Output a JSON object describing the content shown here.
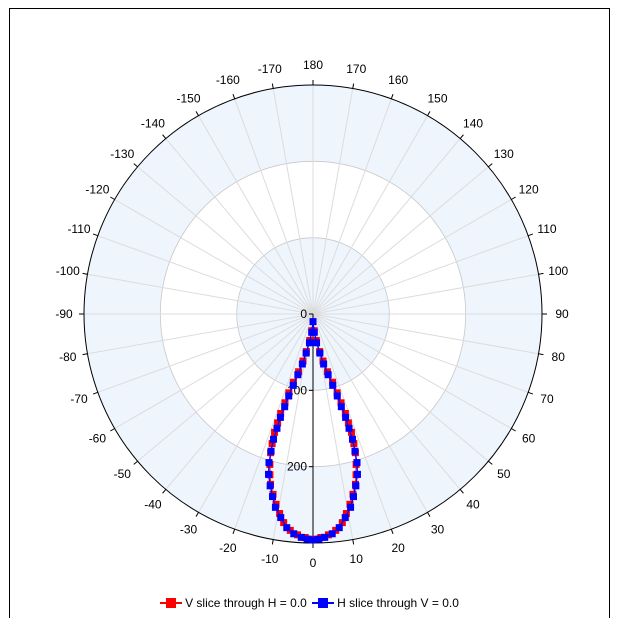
{
  "chart_data": {
    "type": "scatter",
    "subtype": "polar",
    "title": "",
    "angle_labels": [
      "180",
      "170",
      "160",
      "150",
      "140",
      "130",
      "120",
      "110",
      "100",
      "90",
      "80",
      "70",
      "60",
      "50",
      "40",
      "30",
      "20",
      "10",
      "0",
      "-10",
      "-20",
      "-30",
      "-40",
      "-50",
      "-60",
      "-70",
      "-80",
      "-90",
      "-100",
      "-110",
      "-120",
      "-130",
      "-140",
      "-150",
      "-160",
      "-170"
    ],
    "angle_label_values": [
      180,
      170,
      160,
      150,
      140,
      130,
      120,
      110,
      100,
      90,
      80,
      70,
      60,
      50,
      40,
      30,
      20,
      10,
      0,
      -10,
      -20,
      -30,
      -40,
      -50,
      -60,
      -70,
      -80,
      -90,
      -100,
      -110,
      -120,
      -130,
      -140,
      -150,
      -160,
      -170
    ],
    "radial_ticks": [
      0,
      100,
      200
    ],
    "radial_tick_labels": [
      "0",
      "100",
      "200"
    ],
    "rlim": [
      0,
      300
    ],
    "angle_zero_direction": "bottom",
    "grid": true,
    "legend_position": "bottom",
    "colors": {
      "band_fill": "#eef5fd",
      "grid": "#c8c8c8",
      "v_slice": "#ff0000",
      "h_slice": "#0000ff"
    },
    "series": [
      {
        "name": "V slice through H = 0.0",
        "color": "#ff0000",
        "angle": [
          0,
          2,
          4,
          6,
          8,
          9.5,
          11,
          12.5,
          14,
          15,
          16,
          17,
          17.5,
          18,
          18,
          18,
          17.5,
          17,
          16,
          14,
          12,
          10,
          7,
          4,
          -4,
          -7,
          -10,
          -12,
          -14,
          -16,
          -17,
          -17.5,
          -18,
          -18,
          -18,
          -17.5,
          -17,
          -16,
          -15,
          -14,
          -12.5,
          -11,
          -9.5,
          -8,
          -6,
          -4,
          -2
        ],
        "r": [
          295,
          293,
          290,
          285,
          276,
          265,
          254,
          242,
          230,
          218,
          205,
          190,
          178,
          163,
          150,
          137,
          122,
          108,
          93,
          78,
          63,
          50,
          35,
          22,
          22,
          35,
          50,
          63,
          78,
          93,
          108,
          122,
          137,
          150,
          163,
          178,
          190,
          205,
          218,
          230,
          242,
          254,
          265,
          276,
          285,
          290,
          293
        ]
      },
      {
        "name": "H slice through V = 0.0",
        "color": "#0000ff",
        "angle": [
          0,
          1.5,
          3,
          5,
          7,
          9,
          11,
          12.5,
          14,
          15.5,
          16.5,
          17,
          17.5,
          17.5,
          17.5,
          17,
          16.5,
          15.5,
          14,
          12,
          10,
          7,
          4,
          0,
          -4,
          -7,
          -10,
          -12,
          -14,
          -15.5,
          -16.5,
          -17,
          -17.5,
          -17.5,
          -17.5,
          -17,
          -16.5,
          -15.5,
          -14,
          -12.5,
          -11,
          -9,
          -7,
          -5,
          -3,
          -1.5
        ],
        "r": [
          296,
          295,
          293,
          289,
          282,
          270,
          258,
          245,
          232,
          218,
          203,
          188,
          172,
          157,
          142,
          127,
          112,
          97,
          82,
          67,
          52,
          38,
          24,
          10,
          24,
          38,
          52,
          67,
          82,
          97,
          112,
          127,
          142,
          157,
          172,
          188,
          203,
          218,
          232,
          245,
          258,
          270,
          282,
          289,
          293,
          295
        ]
      }
    ]
  },
  "legend": {
    "v_label": "V slice through H = 0.0",
    "h_label": "H slice through V = 0.0"
  }
}
